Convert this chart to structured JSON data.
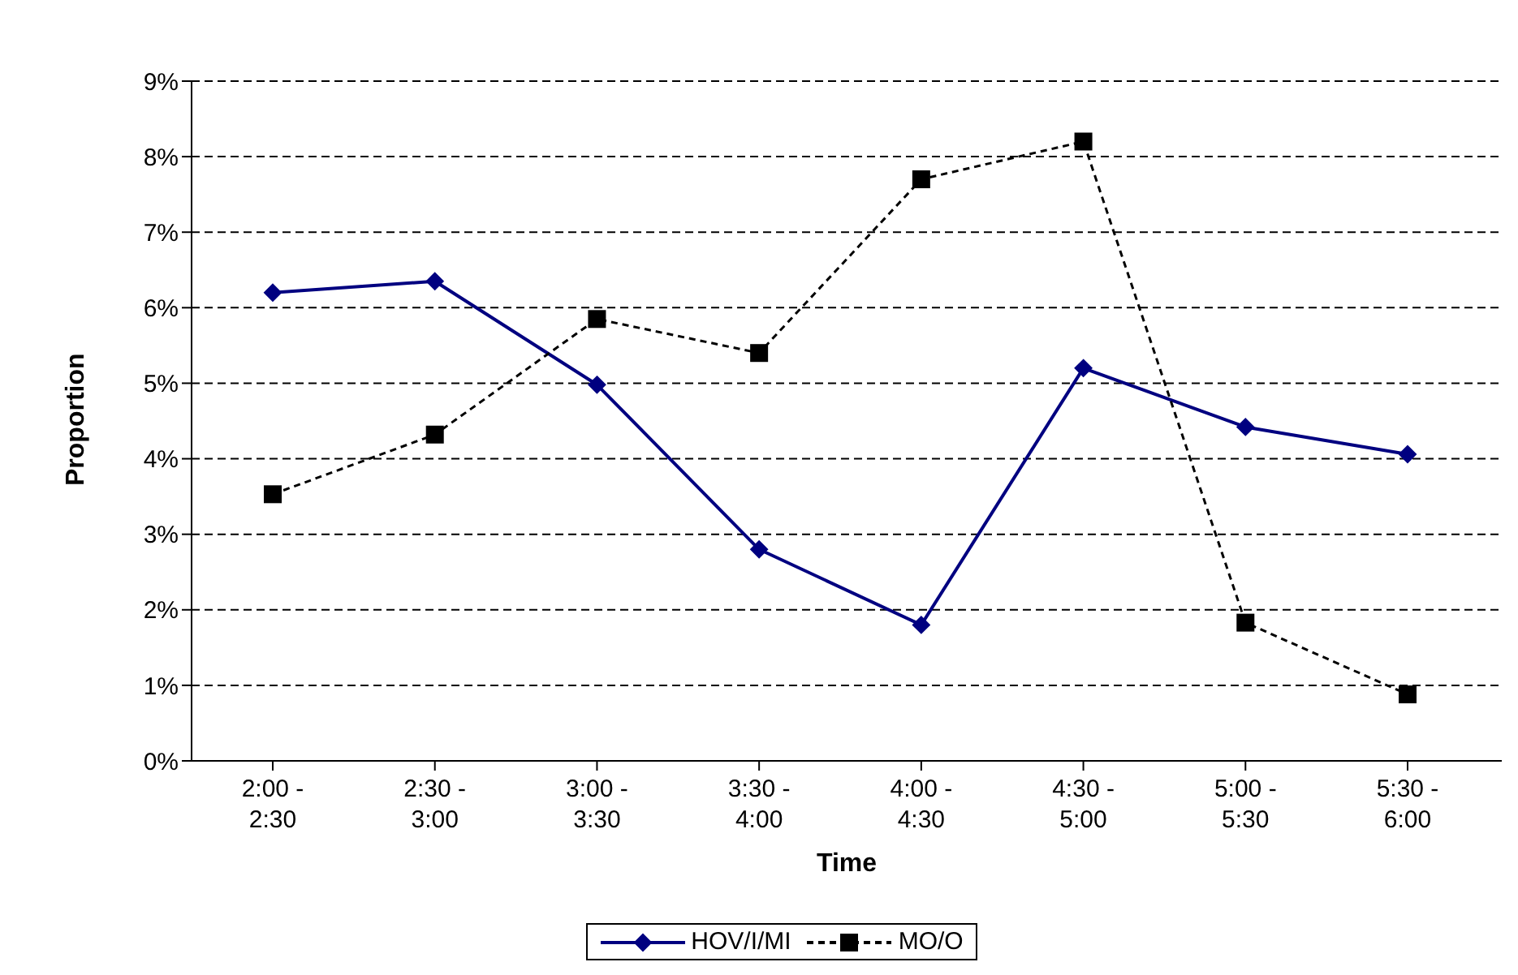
{
  "chart_data": {
    "type": "line",
    "xlabel": "Time",
    "ylabel": "Proportion",
    "categories": [
      "2:00 - 2:30",
      "2:30 - 3:00",
      "3:00 - 3:30",
      "3:30 - 4:00",
      "4:00 - 4:30",
      "4:30 - 5:00",
      "5:00 - 5:30",
      "5:30 - 6:00"
    ],
    "series": [
      {
        "name": "HOV/I/MI",
        "color": "#000080",
        "marker": "diamond",
        "line_style": "solid",
        "values": [
          6.2,
          6.35,
          4.98,
          2.8,
          1.8,
          5.2,
          4.42,
          4.06
        ]
      },
      {
        "name": "MO/O",
        "color": "#000000",
        "marker": "square",
        "line_style": "dashed",
        "values": [
          3.53,
          4.32,
          5.85,
          5.4,
          7.7,
          8.2,
          1.83,
          0.88
        ]
      }
    ],
    "ylim": [
      0,
      9
    ],
    "yticks": [
      {
        "value": 0,
        "label": "0%"
      },
      {
        "value": 1,
        "label": "1%"
      },
      {
        "value": 2,
        "label": "2%"
      },
      {
        "value": 3,
        "label": "3%"
      },
      {
        "value": 4,
        "label": "4%"
      },
      {
        "value": 5,
        "label": "5%"
      },
      {
        "value": 6,
        "label": "6%"
      },
      {
        "value": 7,
        "label": "7%"
      },
      {
        "value": 8,
        "label": "8%"
      },
      {
        "value": 9,
        "label": "9%"
      }
    ],
    "grid": "y",
    "legend": "bottom"
  }
}
